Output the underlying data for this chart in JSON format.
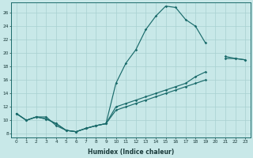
{
  "xlabel": "Humidex (Indice chaleur)",
  "bg_color": "#c8e8e8",
  "grid_color": "#a8d0d0",
  "line_color": "#1a6b6b",
  "xlim": [
    -0.5,
    23.5
  ],
  "ylim": [
    7.5,
    27.5
  ],
  "yticks": [
    8,
    10,
    12,
    14,
    16,
    18,
    20,
    22,
    24,
    26
  ],
  "xticks": [
    0,
    1,
    2,
    3,
    4,
    5,
    6,
    7,
    8,
    9,
    10,
    11,
    12,
    13,
    14,
    15,
    16,
    17,
    18,
    19,
    20,
    21,
    22,
    23
  ],
  "curve1_x": [
    0,
    1,
    2,
    3,
    4,
    5,
    6,
    7,
    8,
    9,
    10,
    11,
    12,
    13,
    14,
    15,
    16,
    17,
    18,
    19
  ],
  "curve1_y": [
    11.0,
    10.0,
    10.5,
    10.5,
    9.2,
    8.5,
    8.3,
    8.8,
    9.2,
    9.5,
    15.5,
    18.5,
    20.5,
    23.5,
    25.5,
    27.0,
    26.8,
    25.0,
    24.0,
    21.5
  ],
  "curve2_x": [
    0,
    1,
    2,
    3,
    4,
    5,
    6,
    7,
    8,
    9,
    10,
    11,
    12,
    13,
    14,
    15,
    16,
    17,
    18,
    19,
    21,
    22,
    23
  ],
  "curve2_y": [
    11.0,
    10.0,
    10.5,
    10.2,
    9.5,
    8.5,
    8.3,
    8.8,
    9.2,
    9.5,
    11.5,
    12.0,
    12.5,
    13.0,
    13.5,
    14.0,
    14.5,
    15.0,
    15.5,
    16.0,
    19.2,
    19.2,
    19.0
  ],
  "curve3_x": [
    0,
    1,
    2,
    3,
    4,
    5,
    6,
    7,
    8,
    9,
    10,
    11,
    12,
    13,
    14,
    15,
    16,
    17,
    18,
    19,
    21,
    22,
    23
  ],
  "curve3_y": [
    11.0,
    10.0,
    10.5,
    10.2,
    9.5,
    8.5,
    8.3,
    8.8,
    9.2,
    9.5,
    12.0,
    12.5,
    13.0,
    13.5,
    14.0,
    14.5,
    15.0,
    15.5,
    16.5,
    17.2,
    19.5,
    19.2,
    19.0
  ]
}
